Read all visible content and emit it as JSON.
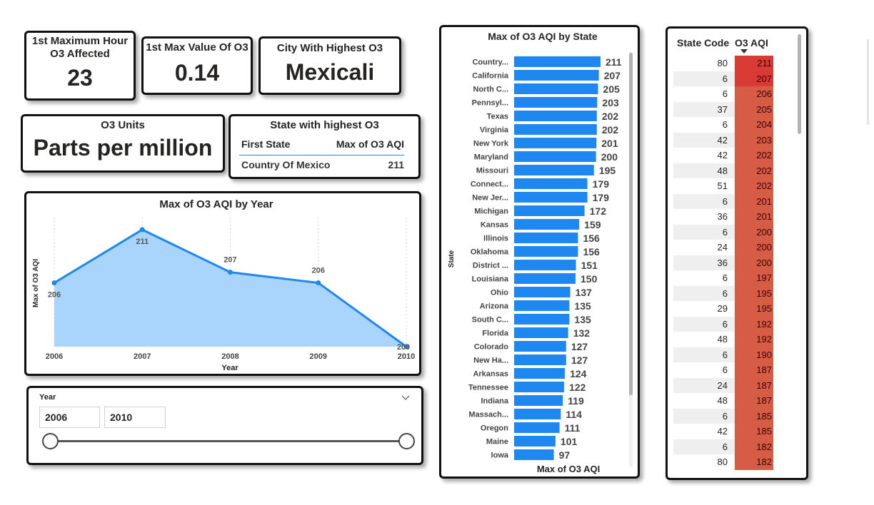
{
  "kpis": {
    "max_hour": {
      "label": "1st Maximum Hour O3 Affected",
      "value": "23"
    },
    "max_value": {
      "label": "1st Max Value Of O3",
      "value": "0.14"
    },
    "city": {
      "label": "City With Highest O3",
      "value": "Mexicali"
    },
    "units": {
      "label": "O3 Units",
      "value": "Parts per million"
    }
  },
  "state_highest": {
    "title": "State with highest O3",
    "col1": "First State",
    "col2": "Max of O3 AQI",
    "row_state": "Country Of Mexico",
    "row_value": "211"
  },
  "line_chart": {
    "title": "Max of O3 AQI by Year",
    "xlabel": "Year",
    "ylabel": "Max of O3 AQI"
  },
  "bar_chart": {
    "title": "Max of O3 AQI by State",
    "xlabel": "Max of O3 AQI",
    "ylabel": "State"
  },
  "slicer": {
    "label": "Year",
    "from": "2006",
    "to": "2010",
    "chevron_icon": "chevron-down-icon"
  },
  "table": {
    "col1": "State Code",
    "col2": "O3 AQI",
    "sort_icon": "sort-desc-icon",
    "rows": [
      {
        "code": "80",
        "aqi": "211"
      },
      {
        "code": "6",
        "aqi": "207"
      },
      {
        "code": "6",
        "aqi": "206"
      },
      {
        "code": "37",
        "aqi": "205"
      },
      {
        "code": "6",
        "aqi": "204"
      },
      {
        "code": "42",
        "aqi": "203"
      },
      {
        "code": "42",
        "aqi": "202"
      },
      {
        "code": "48",
        "aqi": "202"
      },
      {
        "code": "51",
        "aqi": "202"
      },
      {
        "code": "6",
        "aqi": "201"
      },
      {
        "code": "36",
        "aqi": "201"
      },
      {
        "code": "6",
        "aqi": "200"
      },
      {
        "code": "24",
        "aqi": "200"
      },
      {
        "code": "36",
        "aqi": "200"
      },
      {
        "code": "6",
        "aqi": "197"
      },
      {
        "code": "6",
        "aqi": "195"
      },
      {
        "code": "29",
        "aqi": "195"
      },
      {
        "code": "6",
        "aqi": "192"
      },
      {
        "code": "48",
        "aqi": "192"
      },
      {
        "code": "6",
        "aqi": "190"
      },
      {
        "code": "6",
        "aqi": "187"
      },
      {
        "code": "24",
        "aqi": "187"
      },
      {
        "code": "48",
        "aqi": "187"
      },
      {
        "code": "6",
        "aqi": "185"
      },
      {
        "code": "42",
        "aqi": "185"
      },
      {
        "code": "6",
        "aqi": "182"
      },
      {
        "code": "80",
        "aqi": "182"
      }
    ]
  },
  "colors": {
    "bar": "#1e88f0",
    "line": "#1e88f0",
    "area": "#a9d4fb",
    "heat_high": "#d93a33",
    "heat_low": "#d65c45"
  },
  "chart_data": [
    {
      "type": "area",
      "title": "Max of O3 AQI by Year",
      "xlabel": "Year",
      "ylabel": "Max of O3 AQI",
      "x": [
        "2006",
        "2007",
        "2008",
        "2009",
        "2010"
      ],
      "values": [
        206,
        211,
        207,
        206,
        200
      ],
      "grid": false
    },
    {
      "type": "bar",
      "orientation": "horizontal",
      "title": "Max of O3 AQI by State",
      "xlabel": "Max of O3 AQI",
      "ylabel": "State",
      "categories": [
        "Country...",
        "California",
        "North C...",
        "Pennsyl...",
        "Texas",
        "Virginia",
        "New York",
        "Maryland",
        "Missouri",
        "Connect...",
        "New Jer...",
        "Michigan",
        "Kansas",
        "Illinois",
        "Oklahoma",
        "District ...",
        "Louisiana",
        "Ohio",
        "Arizona",
        "South C...",
        "Florida",
        "Colorado",
        "New Ha...",
        "Arkansas",
        "Tennessee",
        "Indiana",
        "Massach...",
        "Oregon",
        "Maine",
        "Iowa"
      ],
      "values": [
        211,
        207,
        205,
        203,
        202,
        202,
        201,
        200,
        195,
        179,
        179,
        172,
        159,
        156,
        156,
        151,
        150,
        137,
        135,
        135,
        132,
        127,
        127,
        124,
        122,
        119,
        114,
        111,
        101,
        97
      ]
    }
  ]
}
